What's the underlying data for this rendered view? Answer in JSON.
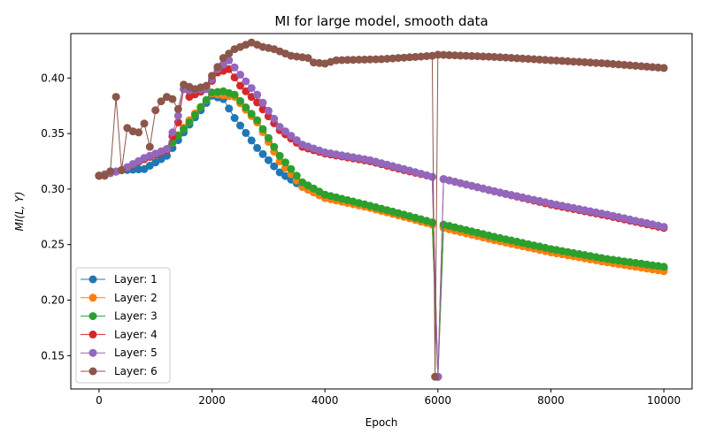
{
  "chart_data": {
    "type": "line",
    "title": "MI for large model, smooth data",
    "xlabel": "Epoch",
    "ylabel": "MI(L, Y)",
    "xlim": [
      -500,
      10500
    ],
    "ylim": [
      0.12,
      0.44
    ],
    "xticks": [
      0,
      2000,
      4000,
      6000,
      8000,
      10000
    ],
    "yticks": [
      0.15,
      0.2,
      0.25,
      0.3,
      0.35,
      0.4
    ],
    "xtick_labels": [
      "0",
      "2000",
      "4000",
      "6000",
      "8000",
      "10000"
    ],
    "ytick_labels": [
      "0.15",
      "0.20",
      "0.25",
      "0.30",
      "0.35",
      "0.40"
    ],
    "grid": false,
    "legend_position": "lower-left",
    "series": [
      {
        "name": "Layer: 1",
        "color": "#1f77b4",
        "key": [
          [
            0,
            0.312
          ],
          [
            400,
            0.317
          ],
          [
            800,
            0.318
          ],
          [
            1200,
            0.33
          ],
          [
            1600,
            0.358
          ],
          [
            2000,
            0.384
          ],
          [
            2200,
            0.381
          ],
          [
            2400,
            0.364
          ],
          [
            2800,
            0.337
          ],
          [
            3200,
            0.315
          ],
          [
            3600,
            0.302
          ],
          [
            4000,
            0.292
          ],
          [
            4800,
            0.284
          ],
          [
            5400,
            0.276
          ],
          [
            5900,
            0.269
          ],
          [
            6000,
            0.131
          ],
          [
            6100,
            0.266
          ],
          [
            7000,
            0.256
          ],
          [
            8000,
            0.245
          ],
          [
            9000,
            0.236
          ],
          [
            10000,
            0.228
          ]
        ]
      },
      {
        "name": "Layer: 2",
        "color": "#ff7f0e",
        "key": [
          [
            0,
            0.312
          ],
          [
            400,
            0.317
          ],
          [
            800,
            0.327
          ],
          [
            1200,
            0.335
          ],
          [
            1600,
            0.362
          ],
          [
            2000,
            0.386
          ],
          [
            2400,
            0.383
          ],
          [
            2800,
            0.36
          ],
          [
            3200,
            0.325
          ],
          [
            3600,
            0.302
          ],
          [
            4000,
            0.292
          ],
          [
            4800,
            0.283
          ],
          [
            5400,
            0.275
          ],
          [
            5900,
            0.268
          ],
          [
            6000,
            0.131
          ],
          [
            6100,
            0.265
          ],
          [
            7000,
            0.254
          ],
          [
            8000,
            0.243
          ],
          [
            9000,
            0.234
          ],
          [
            10000,
            0.226
          ]
        ]
      },
      {
        "name": "Layer: 3",
        "color": "#2ca02c",
        "key": [
          [
            0,
            0.312
          ],
          [
            400,
            0.317
          ],
          [
            800,
            0.327
          ],
          [
            1200,
            0.336
          ],
          [
            1600,
            0.36
          ],
          [
            2000,
            0.387
          ],
          [
            2200,
            0.388
          ],
          [
            2400,
            0.385
          ],
          [
            2800,
            0.362
          ],
          [
            3200,
            0.33
          ],
          [
            3600,
            0.306
          ],
          [
            4000,
            0.295
          ],
          [
            4800,
            0.285
          ],
          [
            5400,
            0.277
          ],
          [
            5900,
            0.27
          ],
          [
            6000,
            0.131
          ],
          [
            6100,
            0.268
          ],
          [
            7000,
            0.257
          ],
          [
            8000,
            0.246
          ],
          [
            9000,
            0.237
          ],
          [
            10000,
            0.23
          ]
        ]
      },
      {
        "name": "Layer: 4",
        "color": "#d62728",
        "key": [
          [
            0,
            0.312
          ],
          [
            400,
            0.317
          ],
          [
            800,
            0.327
          ],
          [
            1200,
            0.335
          ],
          [
            1400,
            0.36
          ],
          [
            1500,
            0.39
          ],
          [
            1600,
            0.383
          ],
          [
            1900,
            0.39
          ],
          [
            2100,
            0.405
          ],
          [
            2300,
            0.408
          ],
          [
            2500,
            0.393
          ],
          [
            2800,
            0.378
          ],
          [
            3200,
            0.353
          ],
          [
            3600,
            0.338
          ],
          [
            4000,
            0.332
          ],
          [
            4800,
            0.325
          ],
          [
            5400,
            0.317
          ],
          [
            5900,
            0.311
          ],
          [
            6000,
            0.131
          ],
          [
            6100,
            0.309
          ],
          [
            7000,
            0.298
          ],
          [
            8000,
            0.286
          ],
          [
            9000,
            0.276
          ],
          [
            10000,
            0.265
          ]
        ]
      },
      {
        "name": "Layer: 5",
        "color": "#9467bd",
        "key": [
          [
            0,
            0.312
          ],
          [
            400,
            0.317
          ],
          [
            800,
            0.328
          ],
          [
            1200,
            0.336
          ],
          [
            1400,
            0.366
          ],
          [
            1500,
            0.39
          ],
          [
            1600,
            0.389
          ],
          [
            1900,
            0.39
          ],
          [
            2100,
            0.408
          ],
          [
            2300,
            0.416
          ],
          [
            2500,
            0.403
          ],
          [
            2800,
            0.385
          ],
          [
            3200,
            0.356
          ],
          [
            3600,
            0.34
          ],
          [
            4000,
            0.333
          ],
          [
            4800,
            0.326
          ],
          [
            5400,
            0.318
          ],
          [
            5900,
            0.311
          ],
          [
            6000,
            0.131
          ],
          [
            6100,
            0.309
          ],
          [
            7000,
            0.298
          ],
          [
            8000,
            0.287
          ],
          [
            9000,
            0.277
          ],
          [
            10000,
            0.266
          ]
        ]
      },
      {
        "name": "Layer: 6",
        "color": "#8c564b",
        "key": [
          [
            0,
            0.312
          ],
          [
            100,
            0.312
          ],
          [
            200,
            0.316
          ],
          [
            300,
            0.383
          ],
          [
            400,
            0.317
          ],
          [
            500,
            0.355
          ],
          [
            600,
            0.352
          ],
          [
            700,
            0.351
          ],
          [
            800,
            0.359
          ],
          [
            900,
            0.338
          ],
          [
            1000,
            0.371
          ],
          [
            1100,
            0.379
          ],
          [
            1200,
            0.383
          ],
          [
            1300,
            0.381
          ],
          [
            1400,
            0.372
          ],
          [
            1500,
            0.394
          ],
          [
            1700,
            0.39
          ],
          [
            1900,
            0.393
          ],
          [
            2000,
            0.402
          ],
          [
            2200,
            0.418
          ],
          [
            2400,
            0.426
          ],
          [
            2700,
            0.432
          ],
          [
            2900,
            0.428
          ],
          [
            3100,
            0.426
          ],
          [
            3400,
            0.42
          ],
          [
            3700,
            0.418
          ],
          [
            3800,
            0.414
          ],
          [
            4000,
            0.413
          ],
          [
            4200,
            0.416
          ],
          [
            5000,
            0.417
          ],
          [
            5900,
            0.42
          ],
          [
            5950,
            0.131
          ],
          [
            6000,
            0.421
          ],
          [
            6500,
            0.42
          ],
          [
            7000,
            0.419
          ],
          [
            8000,
            0.416
          ],
          [
            9000,
            0.413
          ],
          [
            10000,
            0.409
          ]
        ]
      }
    ]
  }
}
